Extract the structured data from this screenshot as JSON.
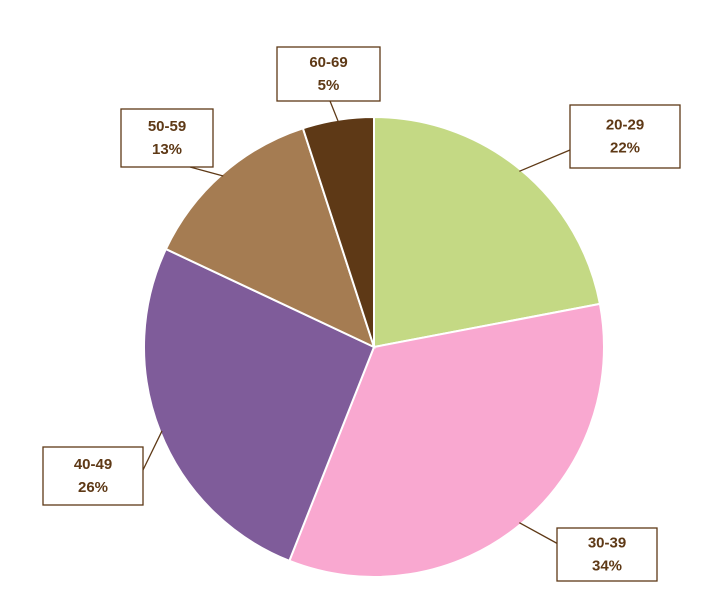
{
  "chart_data": {
    "type": "pie",
    "categories": [
      "20-29",
      "30-39",
      "40-49",
      "50-59",
      "60-69"
    ],
    "values": [
      22,
      34,
      26,
      13,
      5
    ],
    "value_labels": [
      "22%",
      "34%",
      "26%",
      "13%",
      "5%"
    ],
    "colors": [
      "#c4d984",
      "#f9a8d0",
      "#7f5c9a",
      "#a57c52",
      "#5e3916"
    ]
  }
}
